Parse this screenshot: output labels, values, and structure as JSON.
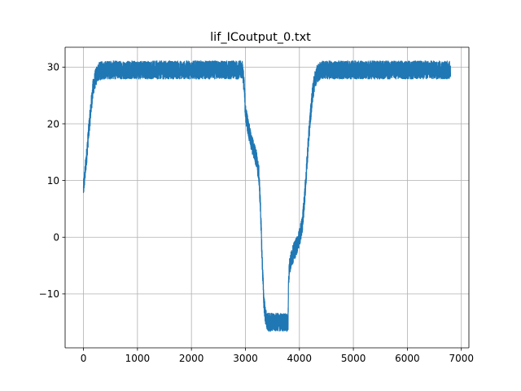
{
  "chart_data": {
    "type": "line",
    "title": "lif_ICoutput_0.txt",
    "xlabel": "",
    "ylabel": "",
    "xlim": [
      -340,
      7140
    ],
    "ylim": [
      -19.5,
      33.5
    ],
    "xticks": [
      0,
      1000,
      2000,
      3000,
      4000,
      5000,
      6000,
      7000
    ],
    "xtick_labels": [
      "0",
      "1000",
      "2000",
      "3000",
      "4000",
      "5000",
      "6000",
      "7000"
    ],
    "yticks": [
      -10,
      0,
      10,
      20,
      30
    ],
    "ytick_labels": [
      "−10",
      "0",
      "10",
      "20",
      "30"
    ],
    "grid": true,
    "legend": "none",
    "series": [
      {
        "name": "lif_ICoutput_0",
        "color": "#1f77b4",
        "x_range": [
          0,
          6800
        ],
        "noise_band": 3.2,
        "x": [
          0,
          20,
          60,
          100,
          140,
          180,
          220,
          260,
          300,
          400,
          600,
          1000,
          1500,
          2000,
          2500,
          2950,
          2980,
          3000,
          3050,
          3100,
          3150,
          3200,
          3250,
          3280,
          3310,
          3340,
          3370,
          3400,
          3500,
          3600,
          3700,
          3790,
          3800,
          3820,
          3860,
          3900,
          3950,
          4000,
          4050,
          4080,
          4120,
          4160,
          4200,
          4240,
          4280,
          4320,
          4400,
          5000,
          6000,
          6800
        ],
        "values": [
          8.5,
          10.5,
          14.5,
          19,
          23,
          26.5,
          28,
          29,
          29.3,
          29.5,
          29.5,
          29.5,
          29.5,
          29.5,
          29.5,
          29.5,
          26,
          22,
          19.5,
          17,
          15.5,
          14,
          11,
          5,
          -4,
          -11,
          -14,
          -15,
          -15,
          -15,
          -15,
          -15,
          -7,
          -5,
          -3.5,
          -2.5,
          -1.5,
          0,
          2,
          5,
          10,
          16,
          21,
          25,
          27.5,
          28.8,
          29.5,
          29.5,
          29.5,
          29.5
        ]
      }
    ]
  },
  "style": {
    "line_color": "#1f77b4",
    "grid_color": "#b0b0b0",
    "axis_color": "#000000",
    "background": "#ffffff"
  }
}
